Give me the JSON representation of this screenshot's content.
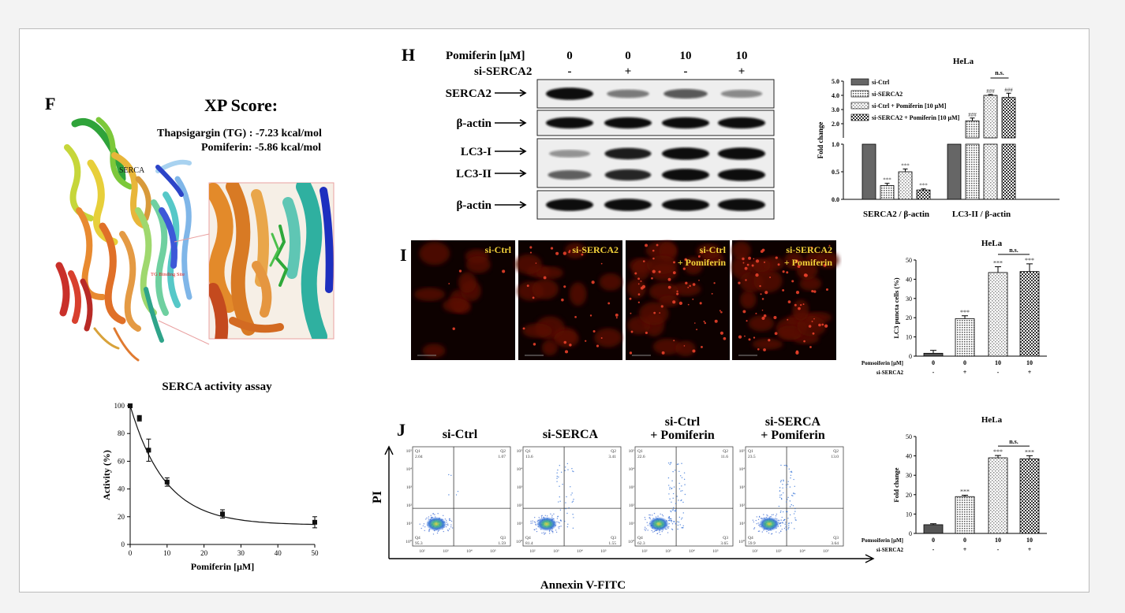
{
  "panelF": {
    "letter": "F",
    "xp_title": "XP Score:",
    "tg_score": "Thapsigargin (TG) : -7.23 kcal/mol",
    "pom_score": "Pomiferin: -5.86 kcal/mol",
    "serca_label": "SERCA",
    "binding_site_label": "TG Binding Site"
  },
  "panelH": {
    "letter": "H",
    "pom_label": "Pomiferin [μM]",
    "si_label": "si-SERCA2",
    "pom_values": [
      "0",
      "0",
      "10",
      "10"
    ],
    "si_values": [
      "-",
      "+",
      "-",
      "+"
    ],
    "blot_rows": [
      "SERCA2",
      "β-actin",
      "LC3-I",
      "LC3-II",
      "β-actin"
    ],
    "bands": {
      "serca2": [
        1.0,
        0.35,
        0.55,
        0.25
      ],
      "actin1": [
        1.0,
        1.0,
        1.0,
        1.0
      ],
      "lc3i": [
        0.2,
        0.9,
        1.0,
        1.0
      ],
      "lc3ii": [
        0.5,
        0.85,
        1.0,
        1.0
      ],
      "actin2": [
        1.0,
        1.0,
        1.0,
        1.0
      ]
    }
  },
  "panelI": {
    "letter": "I",
    "labels": [
      "si-Ctrl",
      "si-SERCA2",
      "si-Ctrl",
      "si-SERCA2"
    ],
    "sublabels": [
      "",
      "",
      "+ Pomiferin",
      "+ Pomiferin"
    ]
  },
  "panelJ": {
    "letter": "J",
    "titles": [
      "si-Ctrl",
      "si-SERCA",
      "si-Ctrl",
      "si-SERCA"
    ],
    "subtitles": [
      "",
      "",
      "+ Pomiferin",
      "+ Pomiferin"
    ],
    "yaxis": "PI",
    "xaxis": "Annexin V-FITC",
    "quadrants": [
      {
        "q1": "Q1",
        "q1v": "2.04",
        "q2": "Q2",
        "q2v": "1.07",
        "q3": "Q3",
        "q3v": "1.59",
        "q4": "Q4",
        "q4v": "95.3"
      },
      {
        "q1": "Q1",
        "q1v": "13.6",
        "q2": "Q2",
        "q2v": "3.41",
        "q3": "Q3",
        "q3v": "1.55",
        "q4": "Q4",
        "q4v": "81.4"
      },
      {
        "q1": "Q1",
        "q1v": "22.6",
        "q2": "Q2",
        "q2v": "11.6",
        "q3": "Q3",
        "q3v": "3.65",
        "q4": "Q4",
        "q4v": "62.3"
      },
      {
        "q1": "Q1",
        "q1v": "23.5",
        "q2": "Q2",
        "q2v": "13.0",
        "q3": "Q3",
        "q3v": "3.64",
        "q4": "Q4",
        "q4v": "59.9"
      }
    ],
    "xticks": [
      "10²",
      "10³",
      "10⁴",
      "10⁵"
    ],
    "yticks": [
      "10⁰",
      "10¹",
      "10²",
      "10³",
      "10⁴",
      "10⁵"
    ]
  },
  "chart_data": [
    {
      "id": "serca_activity",
      "type": "scatter",
      "title": "SERCA activity assay",
      "xlabel": "Pomiferin [μM]",
      "ylabel": "Activity (%)",
      "xlim": [
        0,
        50
      ],
      "ylim": [
        0,
        100
      ],
      "xticks": [
        0,
        10,
        20,
        30,
        40,
        50
      ],
      "yticks": [
        0,
        20,
        40,
        60,
        80,
        100
      ],
      "x": [
        0,
        2.5,
        5,
        10,
        25,
        50
      ],
      "y": [
        100,
        91,
        68,
        45,
        22,
        16
      ],
      "err": [
        1,
        2,
        8,
        3,
        3,
        4
      ],
      "fit": "exponential decay"
    },
    {
      "id": "hela_blot_quant",
      "type": "bar",
      "title": "HeLa",
      "ylabel": "Fold change",
      "groups": [
        "SERCA2 / β-actin",
        "LC3-II / β-actin"
      ],
      "series": [
        {
          "name": "si-Ctrl",
          "values": [
            1.0,
            1.0
          ],
          "err": [
            0,
            0
          ],
          "marks": [
            "",
            ""
          ]
        },
        {
          "name": "si-SERCA2",
          "values": [
            0.25,
            2.2
          ],
          "err": [
            0.04,
            0.2
          ],
          "marks": [
            "***",
            "###"
          ]
        },
        {
          "name": "si-Ctrl + Pomiferin [10 μM]",
          "values": [
            0.5,
            4.0
          ],
          "err": [
            0.05,
            0.06
          ],
          "marks": [
            "***",
            "###"
          ]
        },
        {
          "name": "si-SERCA2 + Pomiferin [10 μM]",
          "values": [
            0.17,
            3.85
          ],
          "err": [
            0.02,
            0.3
          ],
          "marks": [
            "***",
            "###"
          ]
        }
      ],
      "lower_ticks": [
        0.0,
        0.5,
        1.0
      ],
      "upper_ticks": [
        2.0,
        3.0,
        4.0,
        5.0
      ],
      "ns_label": "n.s."
    },
    {
      "id": "lc3_puncta",
      "type": "bar",
      "title": "HeLa",
      "ylabel": "LC3 puncta cells (%)",
      "ylim": [
        0,
        50
      ],
      "yticks": [
        0,
        10,
        20,
        30,
        40,
        50
      ],
      "row1_label": "Pomsoiferin [μM]",
      "row2_label": "si-SERCA2",
      "row1": [
        "0",
        "0",
        "10",
        "10"
      ],
      "row2": [
        "-",
        "+",
        "-",
        "+"
      ],
      "values": [
        1.5,
        19.5,
        43.5,
        44
      ],
      "err": [
        1.5,
        1.5,
        3,
        4
      ],
      "marks": [
        "",
        "***",
        "***",
        "***"
      ],
      "ns_label": "n.s."
    },
    {
      "id": "apoptosis",
      "type": "bar",
      "title": "HeLa",
      "ylabel": "Fold change",
      "ylim": [
        0,
        50
      ],
      "yticks": [
        0,
        10,
        20,
        30,
        40,
        50
      ],
      "row1_label": "Pomsoiferin [μM]",
      "row2_label": "si-SERCA2",
      "row1": [
        "0",
        "0",
        "10",
        "10"
      ],
      "row2": [
        "-",
        "+",
        "-",
        "+"
      ],
      "values": [
        4.5,
        19,
        39,
        38.5
      ],
      "err": [
        0.5,
        0.7,
        1.2,
        1.6
      ],
      "marks": [
        "",
        "***",
        "***",
        "***"
      ],
      "ns_label": "n.s."
    }
  ]
}
